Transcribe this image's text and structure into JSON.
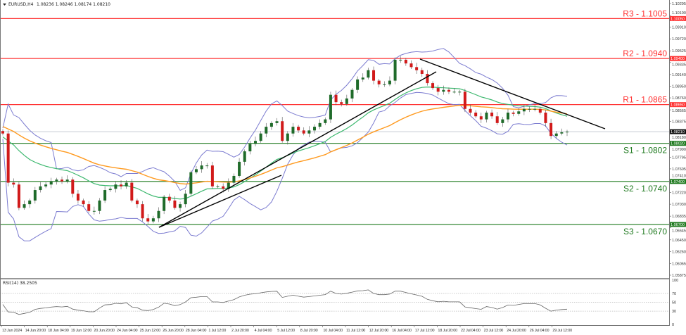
{
  "header": {
    "symbol": "EURUSD,H4",
    "ohlc": "1.08236 1.08246 1.08174 1.08210"
  },
  "rsi": {
    "label": "RSI(14) 38.2505",
    "levels": [
      70,
      50,
      30
    ],
    "axis_ticks": [
      "100",
      "70",
      "50",
      "30",
      "0"
    ]
  },
  "colors": {
    "resistance": "#ff3333",
    "support": "#1f7a1f",
    "bull": "#1f6b2a",
    "bear": "#d11a1a",
    "bands": "#7b7bd0",
    "ma_fast": "#3cb86e",
    "ma_slow": "#ff9a1f",
    "trend": "#000000",
    "current": "#c8ccd4"
  },
  "chart_data": {
    "type": "candlestick",
    "y_range": [
      1.05875,
      1.10295
    ],
    "y_ticks": [
      "1.10295",
      "1.10100",
      "1.09910",
      "1.09720",
      "1.09525",
      "1.09335",
      "1.09140",
      "1.08950",
      "1.08760",
      "1.08565",
      "1.08375",
      "1.08180",
      "1.07990",
      "1.07795",
      "1.07605",
      "1.07410",
      "1.07220",
      "1.07030",
      "1.06835",
      "1.06645",
      "1.06450",
      "1.06260",
      "1.06065",
      "1.05875"
    ],
    "x_ticks": [
      "13 Jun 2024",
      "14 Jun 20:00",
      "18 Jun 04:00",
      "19 Jun 12:00",
      "20 Jun 20:00",
      "24 Jun 04:00",
      "25 Jun 12:00",
      "26 Jun 20:00",
      "28 Jun 04:00",
      "1 Jul 12:00",
      "2 Jul 20:00",
      "4 Jul 04:00",
      "5 Jul 12:00",
      "8 Jul 20:00",
      "10 Jul 04:00",
      "11 Jul 12:00",
      "12 Jul 20:00",
      "16 Jul 04:00",
      "17 Jul 12:00",
      "18 Jul 20:00",
      "22 Jul 04:00",
      "23 Jul 12:00",
      "24 Jul 20:00",
      "26 Jul 04:00",
      "29 Jul 12:00"
    ],
    "closes": [
      1.0818,
      1.0738,
      1.0735,
      1.0697,
      1.0703,
      1.0709,
      1.0726,
      1.0732,
      1.0735,
      1.074,
      1.0743,
      1.074,
      1.0743,
      1.072,
      1.0709,
      1.0703,
      1.0692,
      1.0692,
      1.0709,
      1.0726,
      1.0728,
      1.0735,
      1.0732,
      1.0738,
      1.0709,
      1.0703,
      1.068,
      1.0675,
      1.068,
      1.0692,
      1.0715,
      1.0709,
      1.0697,
      1.0703,
      1.072,
      1.0755,
      1.076,
      1.0766,
      1.0766,
      1.0732,
      1.0732,
      1.0728,
      1.0738,
      1.0749,
      1.0772,
      1.0789,
      1.0801,
      1.0806,
      1.0818,
      1.0829,
      1.0835,
      1.0838,
      1.0806,
      1.0818,
      1.0829,
      1.0823,
      1.0818,
      1.0823,
      1.0829,
      1.0835,
      1.0841,
      1.0881,
      1.0869,
      1.0866,
      1.0875,
      1.0889,
      1.0906,
      1.0909,
      1.0921,
      1.0904,
      1.0898,
      1.0898,
      1.0904,
      1.0938,
      1.0938,
      1.0932,
      1.0926,
      1.0921,
      1.0915,
      1.09,
      1.0892,
      1.0886,
      1.0889,
      1.0886,
      1.0886,
      1.0886,
      1.0858,
      1.0852,
      1.0846,
      1.0841,
      1.0852,
      1.0846,
      1.0835,
      1.0841,
      1.0852,
      1.085,
      1.0854,
      1.0858,
      1.0858,
      1.0858,
      1.0852,
      1.0835,
      1.0814,
      1.0818,
      1.082,
      1.0821
    ],
    "levels": [
      {
        "name": "R3",
        "label": "R3 - 1.1005",
        "price": 1.1005,
        "tag": "1.10050",
        "kind": "resistance"
      },
      {
        "name": "R2",
        "label": "R2 - 1.0940",
        "price": 1.094,
        "tag": "1.09400",
        "kind": "resistance"
      },
      {
        "name": "R1",
        "label": "R1 - 1.0865",
        "price": 1.0865,
        "tag": "1.08650",
        "kind": "resistance"
      },
      {
        "name": "S1",
        "label": "S1 - 1.0802",
        "price": 1.0802,
        "tag": "1.08020",
        "kind": "support"
      },
      {
        "name": "S2",
        "label": "S2 - 1.0740",
        "price": 1.074,
        "tag": "1.07400",
        "kind": "support"
      },
      {
        "name": "S3",
        "label": "S3 - 1.0670",
        "price": 1.067,
        "tag": "1.06700",
        "kind": "support"
      }
    ],
    "current_price": {
      "price": 1.0821,
      "tag": "1.08210"
    }
  }
}
